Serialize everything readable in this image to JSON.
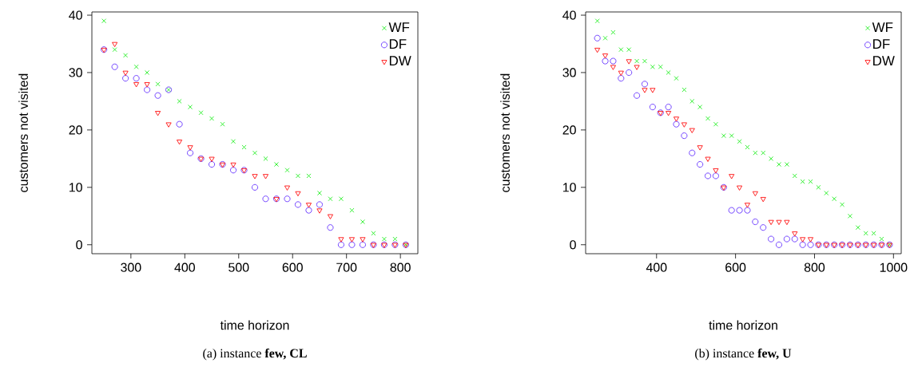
{
  "chart_data": [
    {
      "type": "scatter",
      "xlabel": "time horizon",
      "ylabel": "customers not visited",
      "annotations": [
        "(a) instance **few, CL**"
      ],
      "legend": "top right",
      "xlim": [
        227.6,
        832.4
      ],
      "ylim": [
        -1.56,
        40.56
      ],
      "xticks": [
        300,
        400,
        500,
        600,
        700,
        800
      ],
      "yticks": [
        0,
        10,
        20,
        30,
        40
      ],
      "x": [
        250,
        270,
        290,
        310,
        330,
        350,
        370,
        390,
        410,
        430,
        450,
        470,
        490,
        510,
        530,
        550,
        570,
        590,
        610,
        630,
        650,
        670,
        690,
        710,
        730,
        750,
        770,
        790,
        810
      ],
      "series": [
        {
          "name": "WF",
          "color": "#22ee22",
          "marker": "cross",
          "values": [
            39,
            34,
            33,
            31,
            30,
            28,
            27,
            25,
            24,
            23,
            22,
            21,
            18,
            17,
            16,
            15,
            14,
            13,
            12,
            12,
            9,
            8,
            8,
            6,
            4,
            2,
            1,
            1,
            0
          ]
        },
        {
          "name": "DF",
          "color": "#6633ff",
          "marker": "circle",
          "values": [
            34,
            31,
            29,
            29,
            27,
            26,
            27,
            21,
            16,
            15,
            14,
            14,
            13,
            13,
            10,
            8,
            8,
            8,
            7,
            6,
            7,
            3,
            0,
            0,
            0,
            0,
            0,
            0,
            0
          ]
        },
        {
          "name": "DW",
          "color": "#ff1111",
          "marker": "triangle",
          "values": [
            34,
            35,
            30,
            28,
            28,
            23,
            21,
            18,
            17,
            15,
            15,
            14,
            14,
            13,
            12,
            12,
            8,
            10,
            9,
            7,
            6,
            5,
            1,
            1,
            1,
            0,
            0,
            0,
            0
          ]
        }
      ]
    },
    {
      "type": "scatter",
      "xlabel": "time horizon",
      "ylabel": "customers not visited",
      "annotations": [
        "(b) instance **few, U**"
      ],
      "legend": "top right",
      "xlim": [
        220.4,
        1019.6
      ],
      "ylim": [
        -1.56,
        40.56
      ],
      "xticks": [
        400,
        600,
        800,
        1000
      ],
      "yticks": [
        0,
        10,
        20,
        30,
        40
      ],
      "x": [
        250,
        270,
        290,
        310,
        330,
        350,
        370,
        390,
        410,
        430,
        450,
        470,
        490,
        510,
        530,
        550,
        570,
        590,
        610,
        630,
        650,
        670,
        690,
        710,
        730,
        750,
        770,
        790,
        810,
        830,
        850,
        870,
        890,
        910,
        930,
        950,
        970,
        990
      ],
      "series": [
        {
          "name": "WF",
          "color": "#22ee22",
          "marker": "cross",
          "values": [
            39,
            36,
            37,
            34,
            34,
            32,
            32,
            31,
            31,
            30,
            29,
            27,
            25,
            24,
            22,
            21,
            19,
            19,
            18,
            17,
            16,
            16,
            15,
            14,
            14,
            12,
            11,
            11,
            10,
            9,
            8,
            7,
            5,
            3,
            2,
            2,
            1,
            0
          ]
        },
        {
          "name": "DF",
          "color": "#6633ff",
          "marker": "circle",
          "values": [
            36,
            32,
            32,
            29,
            30,
            26,
            28,
            24,
            23,
            24,
            21,
            19,
            16,
            14,
            12,
            12,
            10,
            6,
            6,
            6,
            4,
            3,
            1,
            0,
            1,
            1,
            0,
            0,
            0,
            0,
            0,
            0,
            0,
            0,
            0,
            0,
            0,
            0
          ]
        },
        {
          "name": "DW",
          "color": "#ff1111",
          "marker": "triangle",
          "values": [
            34,
            33,
            31,
            30,
            32,
            31,
            27,
            27,
            23,
            23,
            22,
            21,
            20,
            17,
            15,
            13,
            10,
            12,
            10,
            7,
            9,
            8,
            4,
            4,
            4,
            2,
            1,
            1,
            0,
            0,
            0,
            0,
            0,
            0,
            0,
            0,
            0,
            0
          ]
        }
      ]
    }
  ]
}
